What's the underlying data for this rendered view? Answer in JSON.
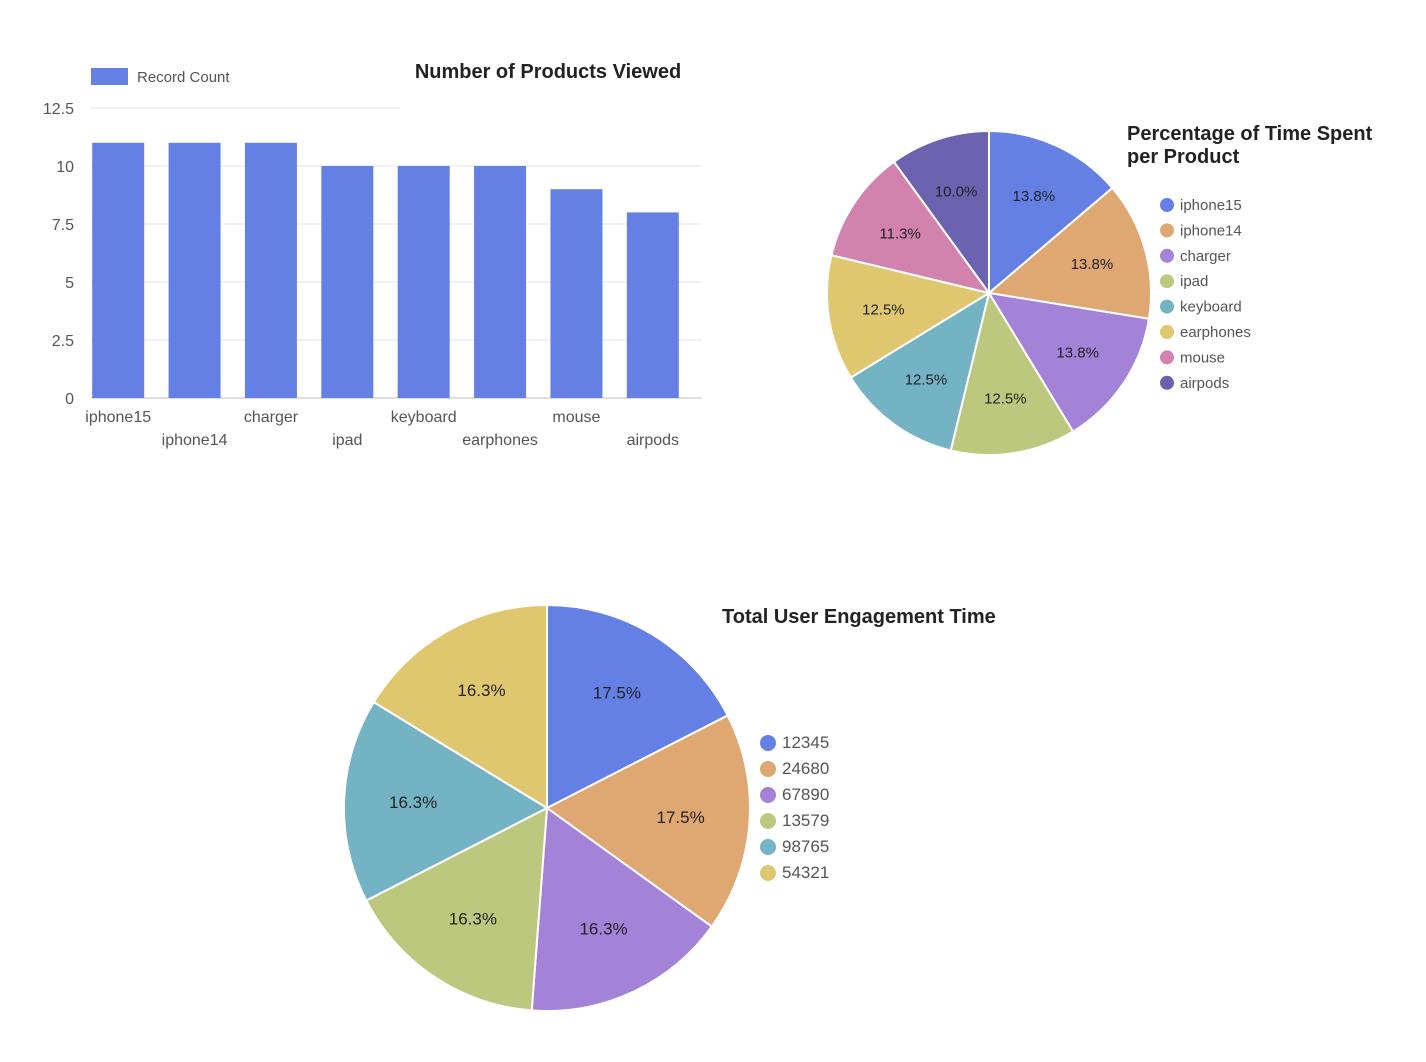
{
  "chart_data": [
    {
      "type": "bar",
      "title": "Number of Products Viewed",
      "legend": "Record Count",
      "legend_position": "top-left",
      "categories": [
        "iphone15",
        "iphone14",
        "charger",
        "ipad",
        "keyboard",
        "earphones",
        "mouse",
        "airpods"
      ],
      "values": [
        11,
        11,
        11,
        10,
        10,
        10,
        9,
        8
      ],
      "yticks": [
        "0",
        "2.5",
        "5",
        "7.5",
        "10",
        "12.5"
      ],
      "ylim": [
        0,
        12.5
      ],
      "grid": true,
      "color": "#6480e4"
    },
    {
      "type": "pie",
      "title_lines": [
        "Percentage of Time Spent",
        "per Product"
      ],
      "legend_position": "right",
      "labels": [
        "iphone15",
        "iphone14",
        "charger",
        "ipad",
        "keyboard",
        "earphones",
        "mouse",
        "airpods"
      ],
      "values": [
        13.8,
        13.8,
        13.8,
        12.5,
        12.5,
        12.5,
        11.3,
        10.0
      ],
      "value_labels": [
        "13.8%",
        "13.8%",
        "13.8%",
        "12.5%",
        "12.5%",
        "12.5%",
        "11.3%",
        "10.0%"
      ],
      "colors": [
        "#6480e4",
        "#dfa873",
        "#a382d8",
        "#bdc87f",
        "#74b3c3",
        "#dfc76f",
        "#d182ad",
        "#6b62b0"
      ]
    },
    {
      "type": "pie",
      "title": "Total User Engagement Time",
      "legend_position": "right",
      "labels": [
        "12345",
        "24680",
        "67890",
        "13579",
        "98765",
        "54321"
      ],
      "values": [
        17.5,
        17.5,
        16.3,
        16.3,
        16.3,
        16.3
      ],
      "value_labels": [
        "17.5%",
        "17.5%",
        "16.3%",
        "16.3%",
        "16.3%",
        "16.3%"
      ],
      "colors": [
        "#6480e4",
        "#dfa873",
        "#a382d8",
        "#bdc87f",
        "#74b3c3",
        "#dfc76f"
      ]
    }
  ]
}
